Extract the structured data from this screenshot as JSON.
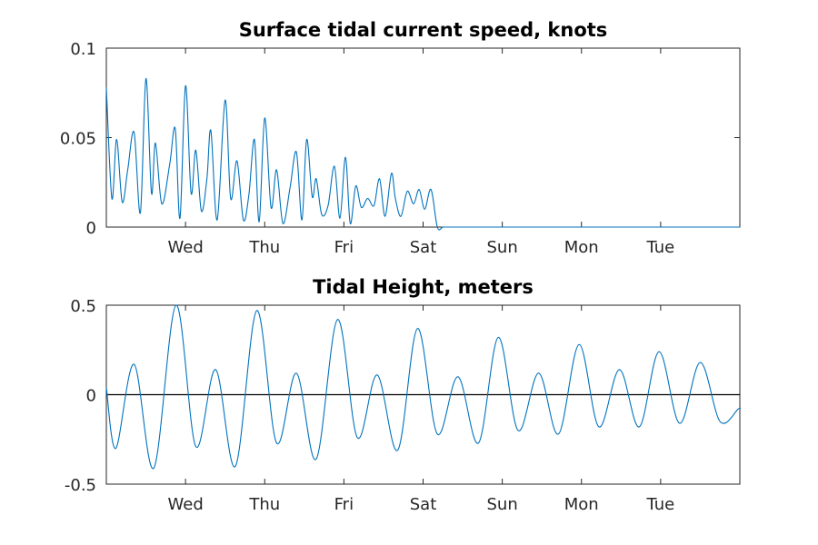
{
  "style": {
    "line_color": "#0072bd",
    "axis_color": "#262626",
    "background": "#ffffff"
  },
  "chart_data": [
    {
      "type": "line",
      "title": "Surface tidal current speed, knots",
      "xlabel": "",
      "ylabel": "",
      "ylim": [
        0,
        0.1
      ],
      "yticks": [
        0,
        0.05,
        0.1
      ],
      "ytick_labels": [
        "0",
        "0.05",
        "0.1"
      ],
      "xlim": [
        0,
        8
      ],
      "xticks": [
        1,
        2,
        3,
        4,
        5,
        6,
        7
      ],
      "xtick_labels": [
        "Wed",
        "Thu",
        "Fri",
        "Sat",
        "Sun",
        "Mon",
        "Tue"
      ],
      "zero_line": false,
      "grid": false,
      "series": [
        {
          "x": [
            0.0,
            0.07,
            0.13,
            0.2,
            0.27,
            0.35,
            0.43,
            0.5,
            0.57,
            0.62,
            0.7,
            0.8,
            0.87,
            0.93,
            1.0,
            1.07,
            1.13,
            1.2,
            1.27,
            1.32,
            1.4,
            1.5,
            1.57,
            1.65,
            1.73,
            1.8,
            1.87,
            1.93,
            2.0,
            2.08,
            2.15,
            2.23,
            2.32,
            2.4,
            2.47,
            2.53,
            2.6,
            2.65,
            2.72,
            2.8,
            2.88,
            2.95,
            3.02,
            3.08,
            3.15,
            3.22,
            3.3,
            3.38,
            3.45,
            3.52,
            3.6,
            3.65,
            3.72,
            3.8,
            3.88,
            3.95,
            4.02,
            4.1,
            4.18,
            4.25,
            4.32,
            4.4,
            4.47,
            4.53,
            4.6,
            4.68,
            4.75,
            4.82,
            4.9,
            4.98,
            5.05,
            5.12,
            5.2,
            5.27,
            5.35,
            5.42,
            5.5,
            5.57,
            5.63,
            5.7,
            5.78,
            5.87,
            5.93,
            6.0,
            6.07,
            6.15,
            6.22,
            6.3,
            6.37,
            6.45,
            6.52,
            6.6,
            6.68,
            6.75,
            6.83,
            6.9,
            6.97,
            7.05,
            7.12,
            7.2,
            7.27,
            7.35,
            7.42,
            7.5,
            7.57,
            7.65,
            7.72,
            7.8,
            7.87,
            7.93,
            8.0
          ],
          "y": [
            0.078,
            0.016,
            0.049,
            0.014,
            0.032,
            0.053,
            0.008,
            0.083,
            0.019,
            0.047,
            0.013,
            0.035,
            0.055,
            0.005,
            0.079,
            0.019,
            0.043,
            0.009,
            0.027,
            0.054,
            0.004,
            0.071,
            0.016,
            0.037,
            0.004,
            0.018,
            0.049,
            0.003,
            0.061,
            0.011,
            0.032,
            0.002,
            0.022,
            0.042,
            0.004,
            0.049,
            0.017,
            0.027,
            0.007,
            0.012,
            0.034,
            0.005,
            0.039,
            0.002,
            0.023,
            0.011,
            0.016,
            0.012,
            0.027,
            0.006,
            0.03,
            0.016,
            0.006,
            0.02,
            0.013,
            0.021,
            0.01,
            0.021,
            0.0,
            0.0,
            0.0,
            0.0,
            0.0,
            0.0,
            0.0,
            0.0,
            0.0,
            0.0,
            0.0,
            0.0,
            0.0,
            0.0,
            0.0,
            0.0,
            0.0,
            0.0,
            0.0,
            0.0,
            0.0,
            0.0,
            0.0,
            0.0,
            0.0,
            0.0,
            0.0,
            0.0,
            0.0,
            0.0,
            0.0,
            0.0,
            0.0,
            0.0,
            0.0,
            0.0,
            0.0,
            0.0,
            0.0,
            0.0,
            0.0,
            0.0,
            0.0,
            0.0,
            0.0,
            0.0,
            0.0,
            0.0,
            0.0,
            0.0,
            0.0,
            0.0,
            0.0
          ]
        }
      ]
    },
    {
      "type": "line",
      "title": "Tidal Height, meters",
      "xlabel": "",
      "ylabel": "",
      "ylim": [
        -0.5,
        0.5
      ],
      "yticks": [
        -0.5,
        0,
        0.5
      ],
      "ytick_labels": [
        "-0.5",
        "0",
        "0.5"
      ],
      "xlim": [
        0,
        8
      ],
      "xticks": [
        1,
        2,
        3,
        4,
        5,
        6,
        7
      ],
      "xtick_labels": [
        "Wed",
        "Thu",
        "Fri",
        "Sat",
        "Sun",
        "Mon",
        "Tue"
      ],
      "zero_line": true,
      "grid": false,
      "series": [
        {
          "x": [
            0.0,
            0.12,
            0.35,
            0.6,
            0.88,
            1.13,
            1.38,
            1.63,
            1.9,
            2.15,
            2.4,
            2.65,
            2.92,
            3.17,
            3.42,
            3.68,
            3.93,
            4.18,
            4.44,
            4.7,
            4.95,
            5.2,
            5.46,
            5.71,
            5.97,
            6.22,
            6.48,
            6.73,
            6.98,
            7.24,
            7.5,
            7.75,
            7.98,
            8.0
          ],
          "y": [
            0.04,
            -0.3,
            0.17,
            -0.41,
            0.5,
            -0.29,
            0.14,
            -0.4,
            0.47,
            -0.27,
            0.12,
            -0.36,
            0.42,
            -0.24,
            0.11,
            -0.31,
            0.37,
            -0.22,
            0.1,
            -0.27,
            0.32,
            -0.2,
            0.12,
            -0.22,
            0.28,
            -0.18,
            0.14,
            -0.18,
            0.24,
            -0.16,
            0.18,
            -0.15,
            -0.08,
            -0.08
          ]
        }
      ]
    }
  ]
}
